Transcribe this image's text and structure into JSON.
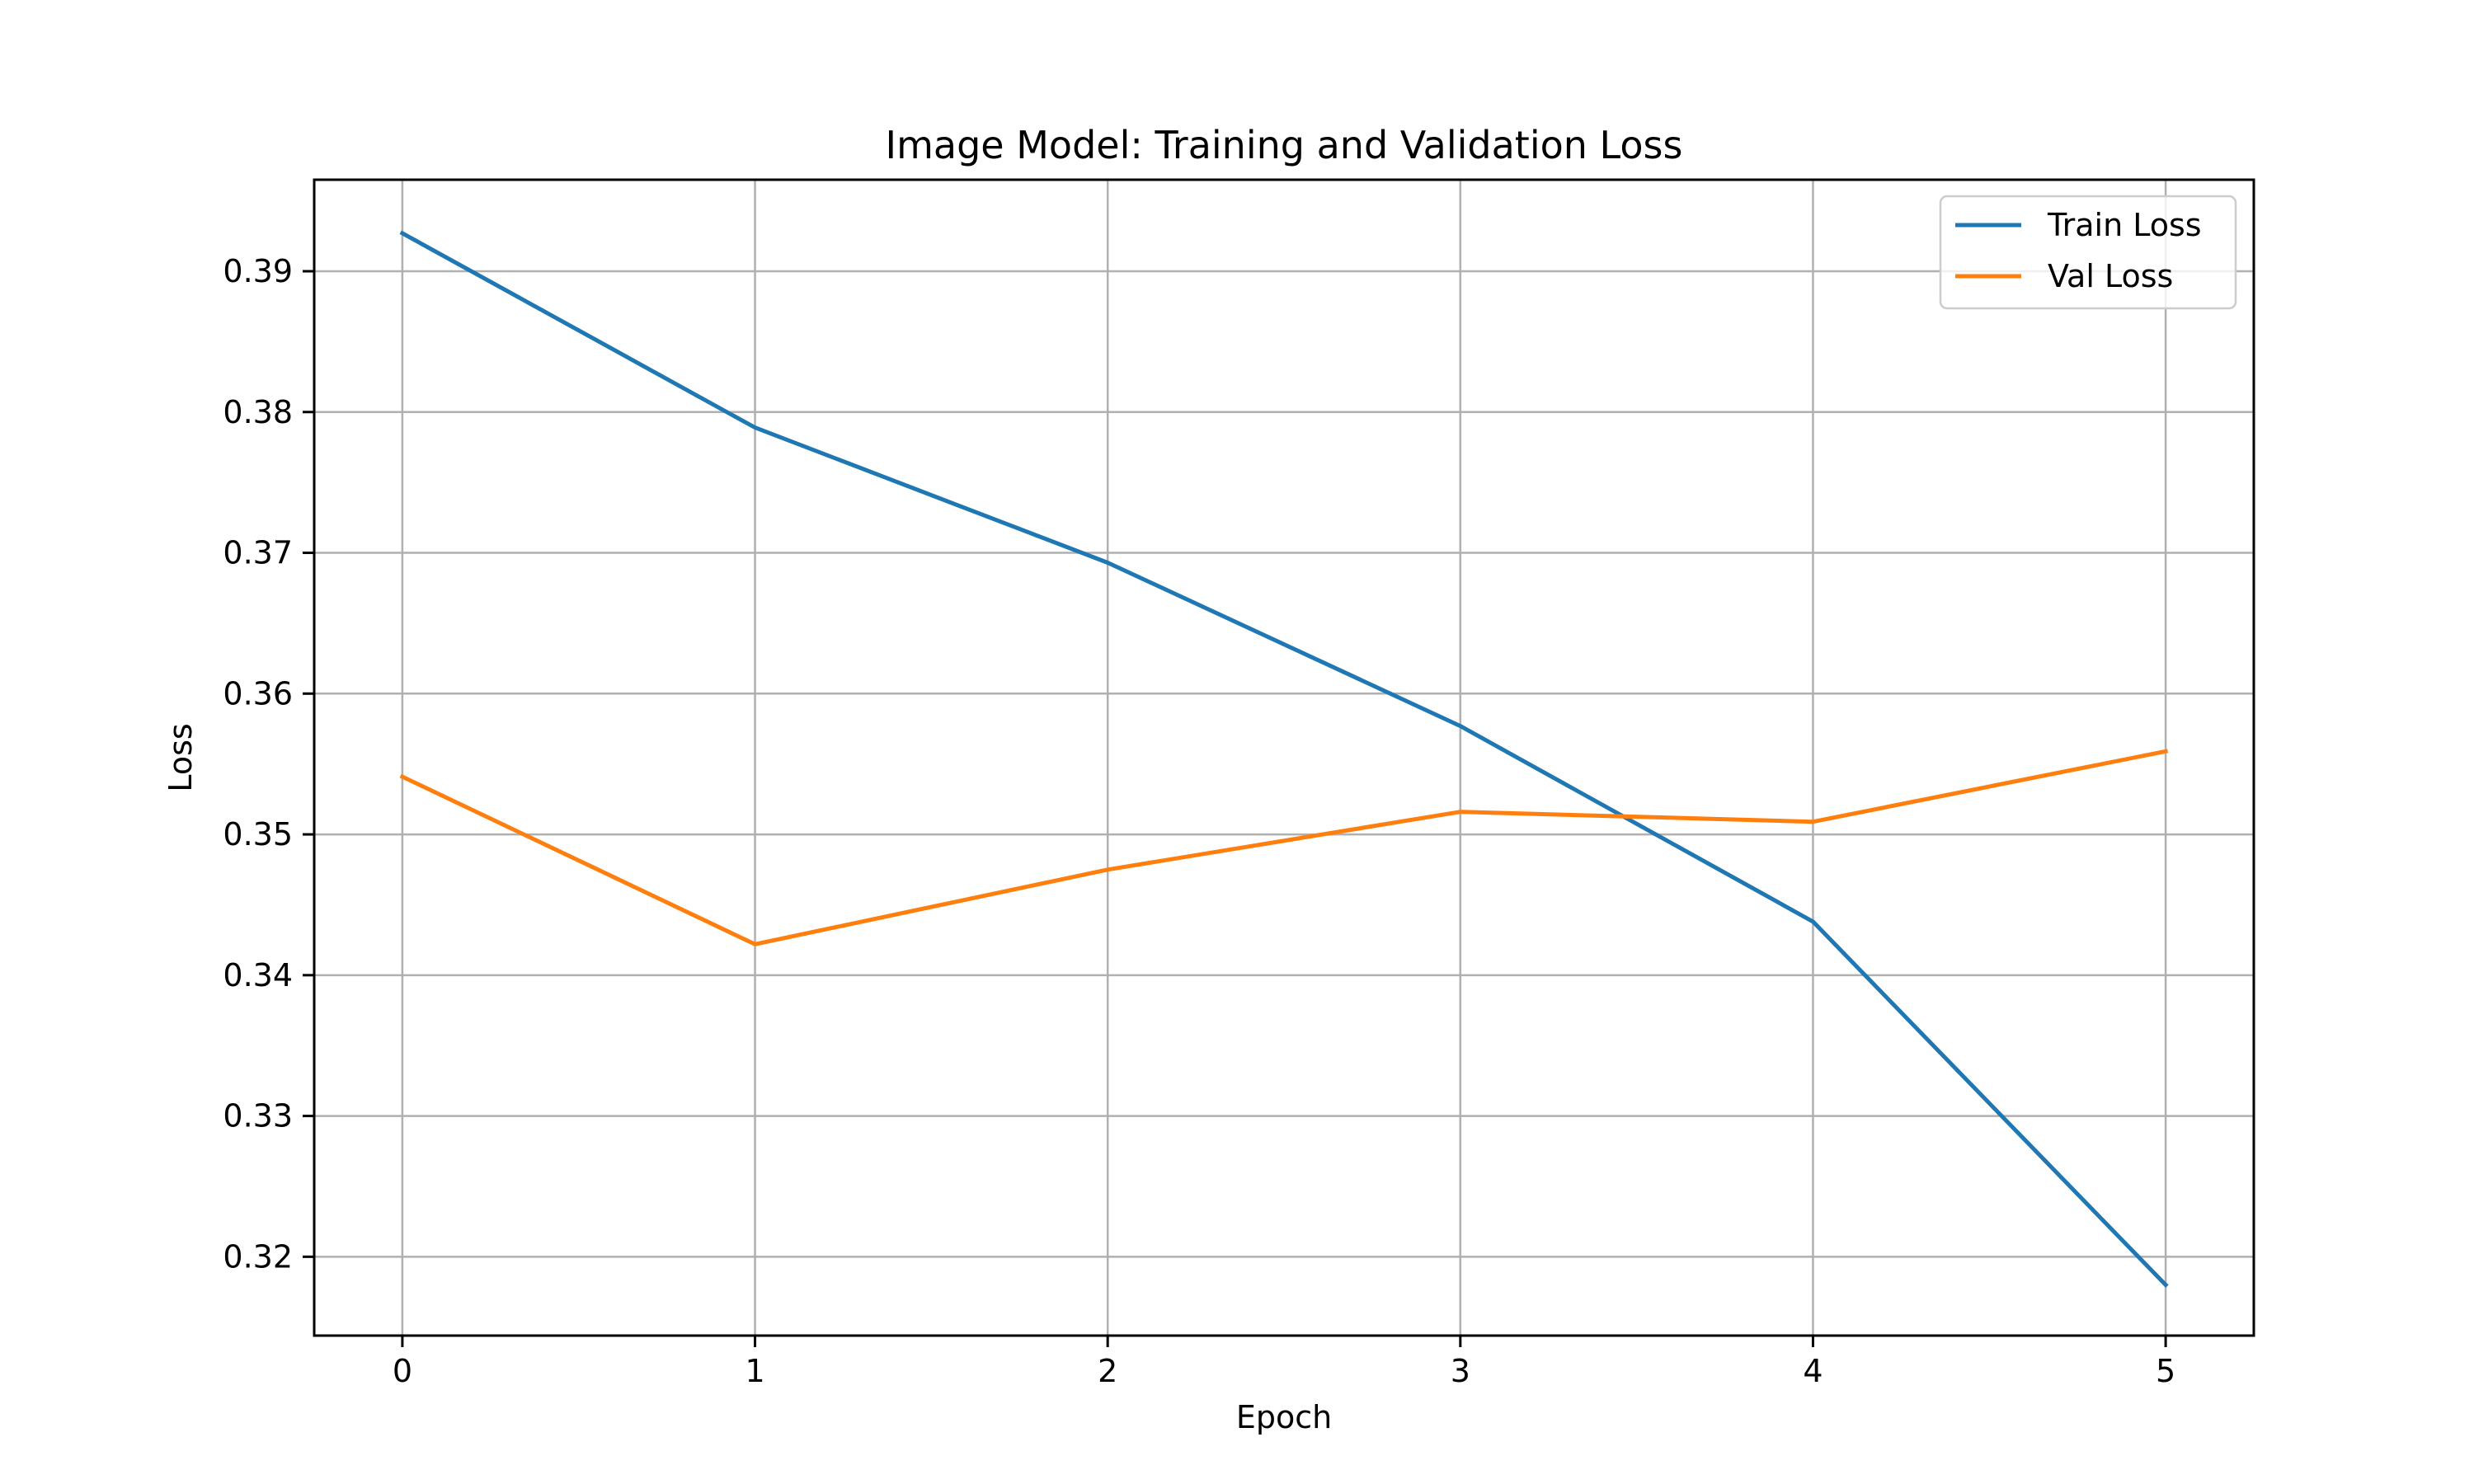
{
  "chart_data": {
    "type": "line",
    "title": "Image Model: Training and Validation Loss",
    "xlabel": "Epoch",
    "ylabel": "Loss",
    "x": [
      0,
      1,
      2,
      3,
      4,
      5
    ],
    "xlim": [
      -0.25,
      5.25
    ],
    "ylim": [
      0.3144,
      0.3965
    ],
    "xticks": [
      "0",
      "1",
      "2",
      "3",
      "4",
      "5"
    ],
    "yticks": [
      "0.32",
      "0.33",
      "0.34",
      "0.35",
      "0.36",
      "0.37",
      "0.38",
      "0.39"
    ],
    "grid": true,
    "legend_position": "top-right",
    "series": [
      {
        "name": "Train Loss",
        "color": "#1f77b4",
        "values": [
          0.3927,
          0.3789,
          0.3693,
          0.3577,
          0.3438,
          0.318
        ]
      },
      {
        "name": "Val Loss",
        "color": "#ff7f0e",
        "values": [
          0.3541,
          0.3422,
          0.3475,
          0.3516,
          0.3509,
          0.3559
        ]
      }
    ]
  }
}
